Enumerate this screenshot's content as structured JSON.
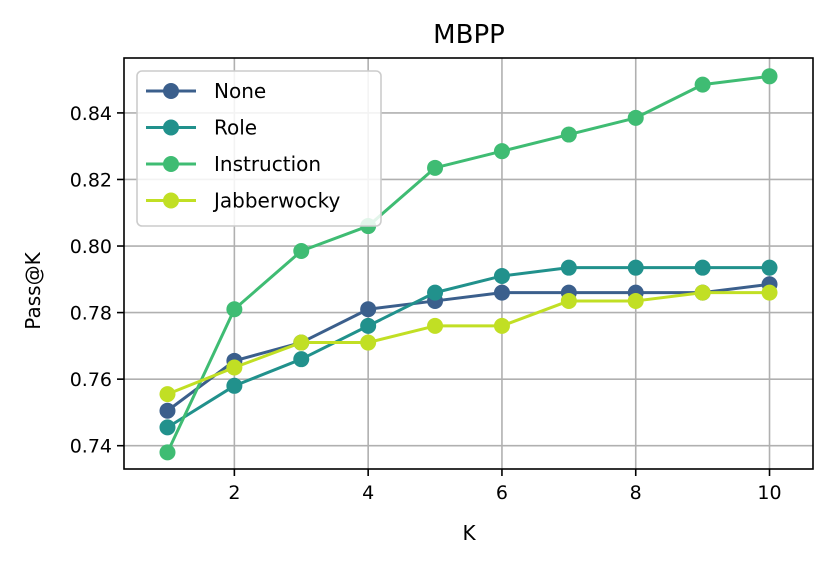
{
  "chart_data": {
    "type": "line",
    "title": "MBPP",
    "xlabel": "K",
    "ylabel": "Pass@K",
    "x": [
      1,
      2,
      3,
      4,
      5,
      6,
      7,
      8,
      9,
      10
    ],
    "xlim": [
      0.35,
      10.65
    ],
    "ylim": [
      0.733,
      0.8565
    ],
    "xticks": [
      2,
      4,
      6,
      8,
      10
    ],
    "yticks": [
      0.74,
      0.76,
      0.78,
      0.8,
      0.82,
      0.84
    ],
    "ytick_labels": [
      "0.74",
      "0.76",
      "0.78",
      "0.80",
      "0.82",
      "0.84"
    ],
    "grid": true,
    "legend_position": "upper-left",
    "series": [
      {
        "name": "None",
        "color": "#3b5f8c",
        "values": [
          0.7505,
          0.7655,
          0.771,
          0.781,
          0.7835,
          0.786,
          0.786,
          0.786,
          0.786,
          0.7885
        ]
      },
      {
        "name": "Role",
        "color": "#21918c",
        "values": [
          0.7455,
          0.758,
          0.766,
          0.776,
          0.786,
          0.791,
          0.7935,
          0.7935,
          0.7935,
          0.7935
        ]
      },
      {
        "name": "Instruction",
        "color": "#3fbc73",
        "values": [
          0.738,
          0.781,
          0.7985,
          0.806,
          0.8235,
          0.8285,
          0.8335,
          0.8385,
          0.8485,
          0.851
        ]
      },
      {
        "name": "Jabberwocky",
        "color": "#c1df24",
        "values": [
          0.7555,
          0.7635,
          0.771,
          0.771,
          0.776,
          0.776,
          0.7835,
          0.7835,
          0.786,
          0.786
        ]
      }
    ]
  }
}
